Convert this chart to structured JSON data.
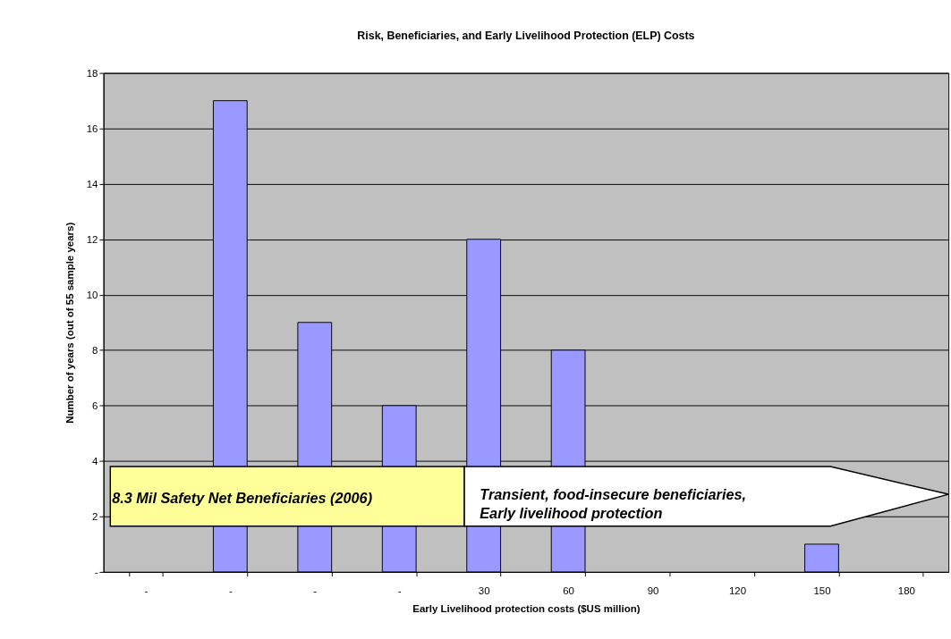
{
  "chart_data": {
    "type": "bar",
    "title": "Risk, Beneficiaries, and Early Livelihood Protection (ELP) Costs",
    "xlabel": "Early Livelihood protection costs ($US million)",
    "ylabel": "Number of years (out of 55 sample years)",
    "categories": [
      "-",
      "-",
      "-",
      "-",
      "30",
      "60",
      "90",
      "120",
      "150",
      "180"
    ],
    "values": [
      0,
      17,
      9,
      6,
      12,
      8,
      0,
      null,
      1,
      0
    ],
    "color": "#9999ff",
    "ylim": [
      0,
      18
    ],
    "yticks": [
      {
        "value": 0,
        "label": "-"
      },
      2,
      4,
      6,
      8,
      10,
      12,
      14,
      16,
      18
    ],
    "grid": "y",
    "annotations": [
      "8.3 Mil Safety Net Beneficiaries (2006)",
      "Transient, food-insecure beneficiaries,\nEarly livelihood protection"
    ]
  }
}
